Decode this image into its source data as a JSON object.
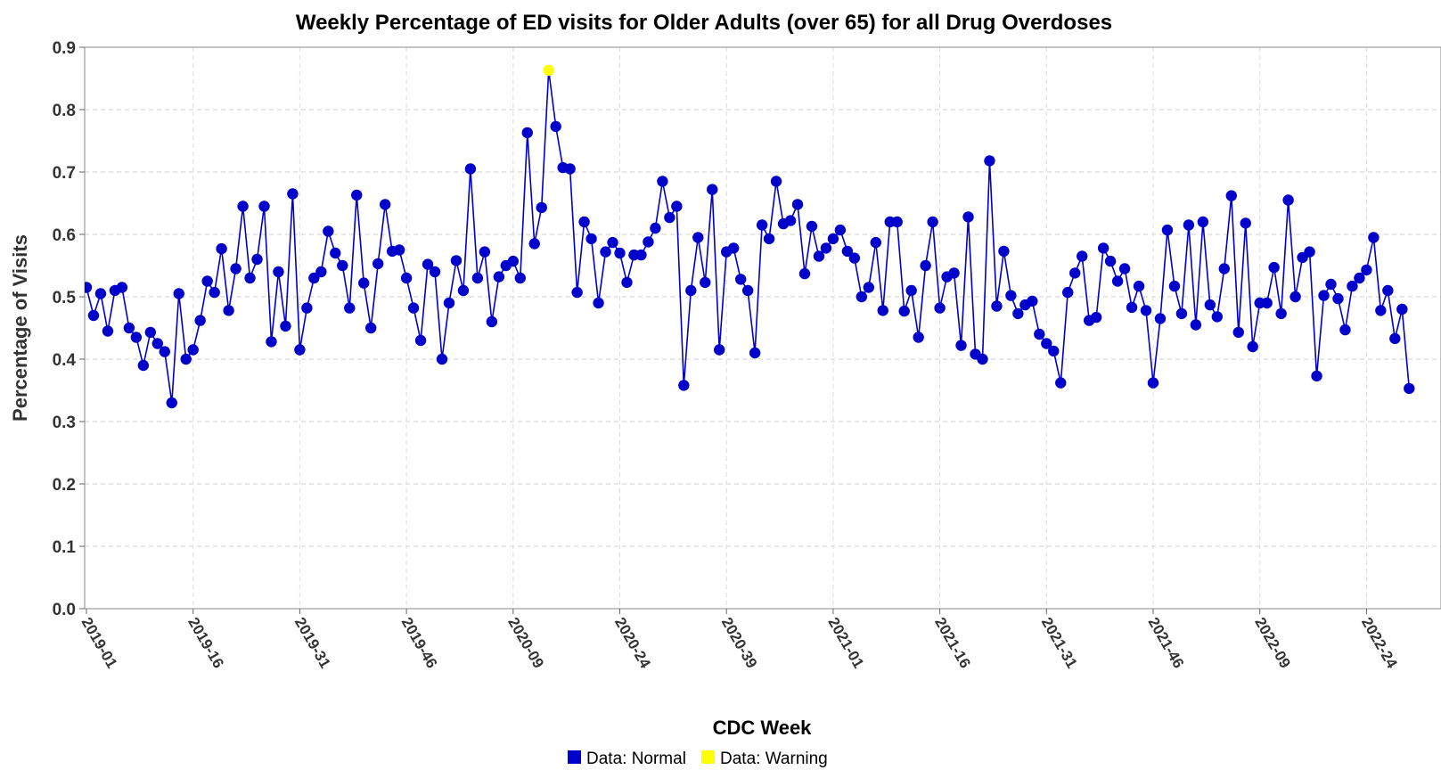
{
  "chart_data": {
    "type": "line",
    "title": "Weekly Percentage of ED visits for Older Adults (over 65) for all Drug Overdoses",
    "xlabel": "CDC Week",
    "ylabel": "Percentage of Visits",
    "ylim": [
      0,
      0.9
    ],
    "yticks": [
      "0.0",
      "0.1",
      "0.2",
      "0.3",
      "0.4",
      "0.5",
      "0.6",
      "0.7",
      "0.8",
      "0.9"
    ],
    "xticks": [
      "2019-01",
      "2019-16",
      "2019-31",
      "2019-46",
      "2020-09",
      "2020-24",
      "2020-39",
      "2021-01",
      "2021-16",
      "2021-31",
      "2021-46",
      "2022-09",
      "2022-24"
    ],
    "grid": true,
    "legend_position": "bottom",
    "series": [
      {
        "name": "Data: Normal",
        "color": "#0000CC",
        "values": [
          0.515,
          0.47,
          0.505,
          0.445,
          0.51,
          0.515,
          0.45,
          0.435,
          0.39,
          0.443,
          0.425,
          0.412,
          0.33,
          0.505,
          0.4,
          0.415,
          0.462,
          0.525,
          0.507,
          0.577,
          0.478,
          0.545,
          0.645,
          0.53,
          0.56,
          0.645,
          0.428,
          0.54,
          0.453,
          0.665,
          0.415,
          0.482,
          0.53,
          0.54,
          0.605,
          0.57,
          0.55,
          0.482,
          0.663,
          0.522,
          0.45,
          0.553,
          0.648,
          0.573,
          0.575,
          0.53,
          0.482,
          0.43,
          0.552,
          0.54,
          0.4,
          0.49,
          0.558,
          0.51,
          0.705,
          0.53,
          0.572,
          0.46,
          0.532,
          0.55,
          0.557,
          0.53,
          0.763,
          0.585,
          0.643,
          0.863,
          0.773,
          0.707,
          0.705,
          0.507,
          0.62,
          0.593,
          0.49,
          0.572,
          0.587,
          0.57,
          0.523,
          0.567,
          0.567,
          0.588,
          0.61,
          0.685,
          0.627,
          0.645,
          0.358,
          0.51,
          0.595,
          0.523,
          0.672,
          0.415,
          0.572,
          0.578,
          0.528,
          0.51,
          0.41,
          0.615,
          0.593,
          0.685,
          0.617,
          0.622,
          0.648,
          0.537,
          0.613,
          0.565,
          0.578,
          0.593,
          0.607,
          0.573,
          0.562,
          0.5,
          0.515,
          0.587,
          0.478,
          0.62,
          0.62,
          0.477,
          0.51,
          0.435,
          0.55,
          0.62,
          0.482,
          0.532,
          0.538,
          0.422,
          0.628,
          0.408,
          0.4,
          0.718,
          0.485,
          0.573,
          0.502,
          0.473,
          0.487,
          0.493,
          0.44,
          0.425,
          0.413,
          0.362,
          0.507,
          0.538,
          0.565,
          0.462,
          0.467,
          0.578,
          0.557,
          0.525,
          0.545,
          0.483,
          0.517,
          0.478,
          0.362,
          0.465,
          0.607,
          0.517,
          0.473,
          0.615,
          0.455,
          0.62,
          0.487,
          0.468,
          0.545,
          0.662,
          0.443,
          0.618,
          0.42,
          0.49,
          0.49,
          0.547,
          0.473,
          0.655,
          0.5,
          0.563,
          0.572,
          0.373,
          0.502,
          0.52,
          0.497,
          0.447,
          0.517,
          0.53,
          0.543,
          0.595,
          0.478,
          0.51,
          0.433,
          0.48,
          0.353
        ]
      },
      {
        "name": "Data: Warning",
        "color": "#FFFF00",
        "points": [
          {
            "index": 65,
            "value": 0.863
          }
        ]
      }
    ]
  }
}
